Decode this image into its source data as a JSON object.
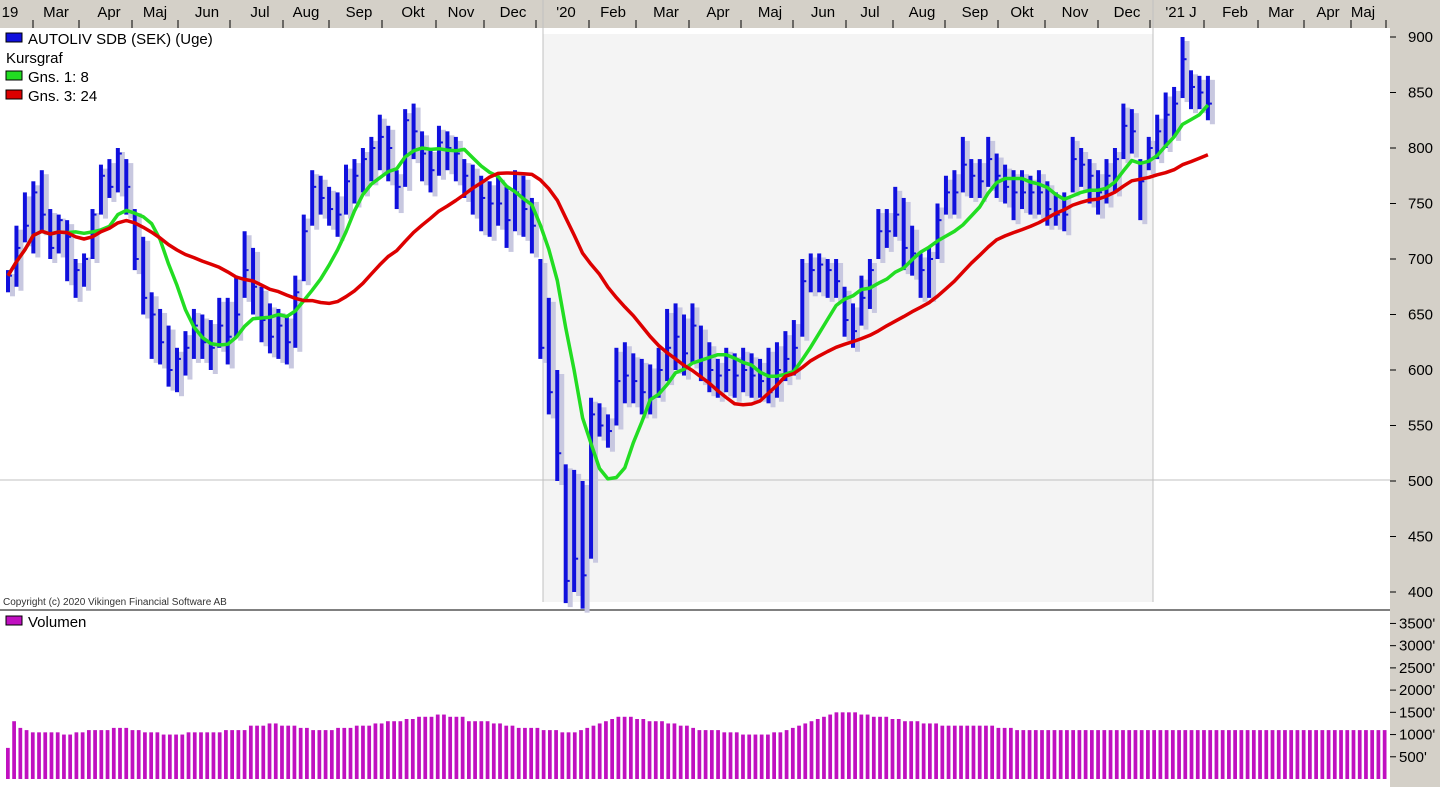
{
  "colors": {
    "price_bar": "#1010dd",
    "bar_shadow": "#c8c8e0",
    "ma_short": "#22dd22",
    "ma_long": "#dd0000",
    "volume": "#c010c0",
    "shade": "#f4f4f4",
    "axis_panel": "#d4d0c8"
  },
  "chart_data": [
    {
      "type": "ohlc",
      "title": "AUTOLIV SDB (SEK) (Uge)",
      "subtitle": "Kursgraf",
      "ylim": [
        380,
        910
      ],
      "y_ticks": [
        400,
        450,
        500,
        550,
        600,
        650,
        700,
        750,
        800,
        850,
        900
      ],
      "x_tick_labels": [
        "19",
        "Mar",
        "Apr",
        "Maj",
        "Jun",
        "Jul",
        "Aug",
        "Sep",
        "Okt",
        "Nov",
        "Dec",
        "'20",
        "Feb",
        "Mar",
        "Apr",
        "Maj",
        "Jun",
        "Jul",
        "Aug",
        "Sep",
        "Okt",
        "Nov",
        "Dec",
        "'21 J",
        "Feb",
        "Mar",
        "Apr",
        "Maj"
      ],
      "shaded_period": [
        "'20",
        "'21 J"
      ],
      "series": [
        {
          "name": "AUTOLIV SDB (SEK) (Uge)",
          "bars": [
            [
              690,
              670,
              685
            ],
            [
              730,
              675,
              710
            ],
            [
              760,
              715,
              730
            ],
            [
              770,
              705,
              760
            ],
            [
              780,
              725,
              740
            ],
            [
              745,
              700,
              710
            ],
            [
              740,
              705,
              735
            ],
            [
              735,
              680,
              720
            ],
            [
              700,
              665,
              690
            ],
            [
              705,
              675,
              700
            ],
            [
              745,
              700,
              740
            ],
            [
              785,
              740,
              775
            ],
            [
              790,
              755,
              765
            ],
            [
              800,
              760,
              795
            ],
            [
              790,
              740,
              765
            ],
            [
              745,
              690,
              700
            ],
            [
              720,
              650,
              665
            ],
            [
              670,
              610,
              650
            ],
            [
              655,
              605,
              625
            ],
            [
              640,
              585,
              600
            ],
            [
              620,
              580,
              610
            ],
            [
              635,
              595,
              620
            ],
            [
              655,
              610,
              640
            ],
            [
              650,
              610,
              625
            ],
            [
              645,
              600,
              620
            ],
            [
              665,
              620,
              640
            ],
            [
              665,
              605,
              630
            ],
            [
              685,
              630,
              650
            ],
            [
              725,
              665,
              690
            ],
            [
              710,
              650,
              675
            ],
            [
              675,
              625,
              645
            ],
            [
              660,
              615,
              630
            ],
            [
              655,
              610,
              640
            ],
            [
              650,
              605,
              625
            ],
            [
              685,
              620,
              670
            ],
            [
              740,
              680,
              725
            ],
            [
              780,
              730,
              765
            ],
            [
              775,
              740,
              755
            ],
            [
              765,
              730,
              745
            ],
            [
              760,
              720,
              740
            ],
            [
              785,
              740,
              770
            ],
            [
              790,
              750,
              775
            ],
            [
              800,
              760,
              790
            ],
            [
              810,
              770,
              800
            ],
            [
              830,
              780,
              810
            ],
            [
              820,
              770,
              800
            ],
            [
              780,
              745,
              765
            ],
            [
              835,
              765,
              825
            ],
            [
              840,
              790,
              815
            ],
            [
              815,
              770,
              795
            ],
            [
              800,
              760,
              780
            ],
            [
              820,
              775,
              805
            ],
            [
              815,
              780,
              800
            ],
            [
              810,
              770,
              795
            ],
            [
              790,
              755,
              775
            ],
            [
              785,
              740,
              765
            ],
            [
              775,
              725,
              755
            ],
            [
              770,
              720,
              750
            ],
            [
              775,
              730,
              750
            ],
            [
              765,
              710,
              735
            ],
            [
              780,
              725,
              760
            ],
            [
              775,
              720,
              745
            ],
            [
              755,
              705,
              730
            ],
            [
              700,
              610,
              620
            ],
            [
              665,
              560,
              580
            ],
            [
              600,
              500,
              525
            ],
            [
              515,
              390,
              410
            ],
            [
              510,
              400,
              430
            ],
            [
              500,
              385,
              415
            ],
            [
              575,
              430,
              560
            ],
            [
              570,
              540,
              550
            ],
            [
              560,
              530,
              545
            ],
            [
              620,
              550,
              590
            ],
            [
              625,
              570,
              595
            ],
            [
              615,
              570,
              590
            ],
            [
              610,
              560,
              580
            ],
            [
              605,
              560,
              575
            ],
            [
              620,
              575,
              600
            ],
            [
              655,
              590,
              620
            ],
            [
              660,
              600,
              630
            ],
            [
              650,
              595,
              615
            ],
            [
              660,
              605,
              640
            ],
            [
              640,
              590,
              610
            ],
            [
              625,
              580,
              600
            ],
            [
              610,
              575,
              595
            ],
            [
              620,
              580,
              600
            ],
            [
              615,
              575,
              595
            ],
            [
              620,
              580,
              600
            ],
            [
              615,
              575,
              595
            ],
            [
              610,
              575,
              590
            ],
            [
              620,
              570,
              580
            ],
            [
              625,
              575,
              600
            ],
            [
              635,
              590,
              610
            ],
            [
              645,
              595,
              620
            ],
            [
              700,
              630,
              680
            ],
            [
              705,
              670,
              690
            ],
            [
              705,
              670,
              695
            ],
            [
              700,
              665,
              690
            ],
            [
              700,
              665,
              680
            ],
            [
              675,
              630,
              645
            ],
            [
              660,
              620,
              635
            ],
            [
              685,
              640,
              665
            ],
            [
              700,
              655,
              690
            ],
            [
              745,
              700,
              725
            ],
            [
              745,
              710,
              725
            ],
            [
              765,
              720,
              740
            ],
            [
              755,
              690,
              710
            ],
            [
              730,
              685,
              705
            ],
            [
              705,
              665,
              690
            ],
            [
              710,
              665,
              700
            ],
            [
              750,
              700,
              735
            ],
            [
              775,
              740,
              760
            ],
            [
              780,
              740,
              760
            ],
            [
              810,
              760,
              785
            ],
            [
              790,
              755,
              775
            ],
            [
              790,
              755,
              770
            ],
            [
              810,
              765,
              790
            ],
            [
              795,
              755,
              775
            ],
            [
              785,
              750,
              765
            ],
            [
              780,
              735,
              760
            ],
            [
              780,
              745,
              760
            ],
            [
              775,
              740,
              760
            ],
            [
              780,
              740,
              760
            ],
            [
              770,
              730,
              745
            ],
            [
              760,
              730,
              740
            ],
            [
              760,
              725,
              740
            ],
            [
              810,
              760,
              790
            ],
            [
              800,
              765,
              785
            ],
            [
              790,
              750,
              775
            ],
            [
              780,
              740,
              760
            ],
            [
              790,
              750,
              775
            ],
            [
              800,
              760,
              790
            ],
            [
              840,
              790,
              820
            ],
            [
              835,
              795,
              815
            ],
            [
              790,
              735,
              770
            ],
            [
              810,
              780,
              800
            ],
            [
              830,
              790,
              815
            ],
            [
              850,
              800,
              830
            ],
            [
              855,
              810,
              840
            ],
            [
              900,
              845,
              880
            ],
            [
              870,
              835,
              855
            ],
            [
              865,
              835,
              850
            ],
            [
              865,
              825,
              840
            ]
          ]
        },
        {
          "name": "Gns. 1: 8"
        },
        {
          "name": "Gns. 3: 24"
        }
      ]
    },
    {
      "type": "bar",
      "title": "Volumen",
      "ylim": [
        0,
        3600
      ],
      "y_tick_labels": [
        "500'",
        "1000'",
        "1500'",
        "2000'",
        "2500'",
        "3000'",
        "3500'"
      ],
      "y_ticks": [
        500,
        1000,
        1500,
        2000,
        2500,
        3000,
        3500
      ],
      "values": [
        700,
        1300,
        1150,
        1100,
        1050,
        1050,
        1050,
        1050,
        1050,
        1000,
        1000,
        1050,
        1050,
        1100,
        1100,
        1100,
        1100,
        1150,
        1150,
        1150,
        1100,
        1100,
        1050,
        1050,
        1050,
        1000,
        1000,
        1000,
        1000,
        1050,
        1050,
        1050,
        1050,
        1050,
        1050,
        1100,
        1100,
        1100,
        1100,
        1200,
        1200,
        1200,
        1250,
        1250,
        1200,
        1200,
        1200,
        1150,
        1150,
        1100,
        1100,
        1100,
        1100,
        1150,
        1150,
        1150,
        1200,
        1200,
        1200,
        1250,
        1250,
        1300,
        1300,
        1300,
        1350,
        1350,
        1400,
        1400,
        1400,
        1450,
        1450,
        1400,
        1400,
        1400,
        1300,
        1300,
        1300,
        1300,
        1250,
        1250,
        1200,
        1200,
        1150,
        1150,
        1150,
        1150,
        1100,
        1100,
        1100,
        1050,
        1050,
        1050,
        1100,
        1150,
        1200,
        1250,
        1300,
        1350,
        1400,
        1400,
        1400,
        1350,
        1350,
        1300,
        1300,
        1300,
        1250,
        1250,
        1200,
        1200,
        1150,
        1100,
        1100,
        1100,
        1100,
        1050,
        1050,
        1050,
        1000,
        1000,
        1000,
        1000,
        1000,
        1050,
        1050,
        1100,
        1150,
        1200,
        1250,
        1300,
        1350,
        1400,
        1450,
        1500,
        1500,
        1500,
        1500,
        1450,
        1450,
        1400,
        1400,
        1400,
        1350,
        1350,
        1300,
        1300,
        1300,
        1250,
        1250,
        1250,
        1200,
        1200,
        1200,
        1200,
        1200,
        1200,
        1200,
        1200,
        1200,
        1150,
        1150,
        1150,
        1100,
        1100,
        1100,
        1100,
        1100,
        1100,
        1100,
        1100,
        1100,
        1100,
        1100,
        1100,
        1100,
        1100,
        1100,
        1100,
        1100,
        1100,
        1100,
        1100,
        1100,
        1100,
        1100,
        1100,
        1100,
        1100,
        1100,
        1100,
        1100,
        1100,
        1100,
        1100,
        1100,
        1100,
        1100,
        1100,
        1100,
        1100,
        1100,
        1100,
        1100,
        1100,
        1100,
        1100,
        1100,
        1100,
        1100,
        1100,
        1100,
        1100,
        1100,
        1100,
        1100,
        1100,
        1100,
        1100,
        1100,
        1100,
        1100,
        1100
      ]
    }
  ],
  "copyright": "Copyright (c) 2020 Vikingen Financial Software AB"
}
